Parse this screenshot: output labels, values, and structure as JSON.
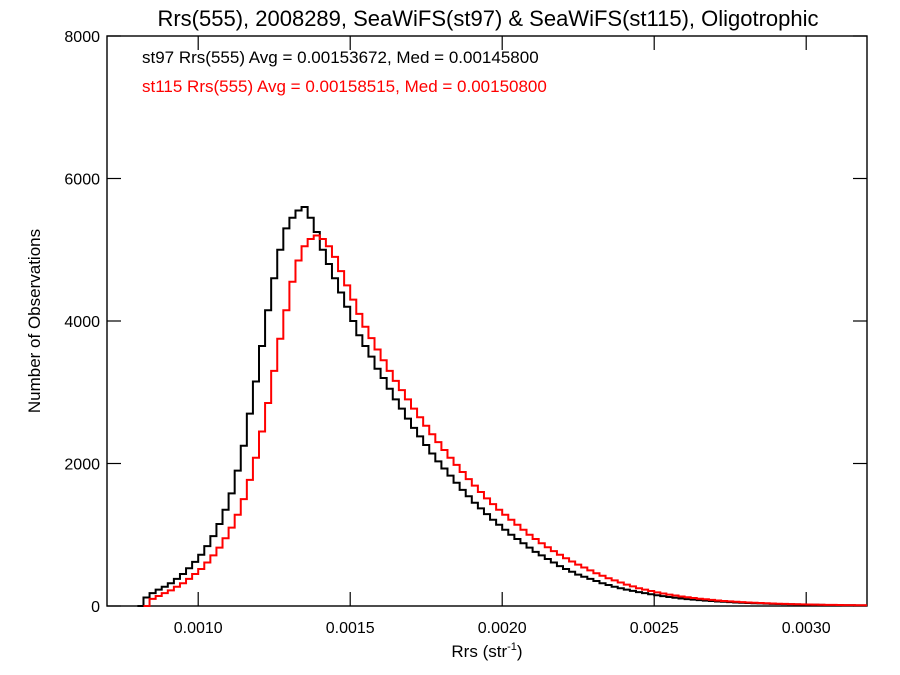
{
  "chart_data": {
    "type": "line",
    "style": "histogram-step",
    "title": "Rrs(555), 2008289, SeaWiFS(st97) & SeaWiFS(st115), Oligotrophic",
    "xlabel_main": "Rrs (str",
    "xlabel_sup": "-1",
    "xlabel_close": ")",
    "ylabel": "Number of Observations",
    "xlim": [
      0.0007,
      0.0032
    ],
    "ylim": [
      0,
      8000
    ],
    "xticks": [
      {
        "value": 0.001,
        "label": "0.0010"
      },
      {
        "value": 0.0015,
        "label": "0.0015"
      },
      {
        "value": 0.002,
        "label": "0.0020"
      },
      {
        "value": 0.0025,
        "label": "0.0025"
      },
      {
        "value": 0.003,
        "label": "0.0030"
      }
    ],
    "yticks": [
      {
        "value": 0,
        "label": "0"
      },
      {
        "value": 2000,
        "label": "2000"
      },
      {
        "value": 4000,
        "label": "4000"
      },
      {
        "value": 6000,
        "label": "6000"
      },
      {
        "value": 8000,
        "label": "8000"
      }
    ],
    "grid": false,
    "legend_position": "top-left",
    "series": [
      {
        "name": "st97",
        "color": "#000000",
        "annotation": "st97 Rrs(555) Avg = 0.00153672, Med = 0.00145800",
        "points": [
          [
            0.0008,
            0
          ],
          [
            0.00082,
            120
          ],
          [
            0.00084,
            180
          ],
          [
            0.00086,
            230
          ],
          [
            0.00088,
            270
          ],
          [
            0.0009,
            320
          ],
          [
            0.00092,
            380
          ],
          [
            0.00094,
            450
          ],
          [
            0.00096,
            530
          ],
          [
            0.00098,
            620
          ],
          [
            0.001,
            720
          ],
          [
            0.00102,
            840
          ],
          [
            0.00104,
            980
          ],
          [
            0.00106,
            1150
          ],
          [
            0.00108,
            1350
          ],
          [
            0.0011,
            1580
          ],
          [
            0.00112,
            1900
          ],
          [
            0.00114,
            2250
          ],
          [
            0.00116,
            2700
          ],
          [
            0.00118,
            3150
          ],
          [
            0.0012,
            3650
          ],
          [
            0.00122,
            4150
          ],
          [
            0.00124,
            4600
          ],
          [
            0.00126,
            5000
          ],
          [
            0.00128,
            5300
          ],
          [
            0.0013,
            5450
          ],
          [
            0.00132,
            5550
          ],
          [
            0.00134,
            5600
          ],
          [
            0.00136,
            5450
          ],
          [
            0.00138,
            5250
          ],
          [
            0.0014,
            5000
          ],
          [
            0.00142,
            4800
          ],
          [
            0.00144,
            4600
          ],
          [
            0.00146,
            4400
          ],
          [
            0.00148,
            4200
          ],
          [
            0.0015,
            4000
          ],
          [
            0.00152,
            3800
          ],
          [
            0.00154,
            3650
          ],
          [
            0.00156,
            3500
          ],
          [
            0.00158,
            3330
          ],
          [
            0.0016,
            3200
          ],
          [
            0.00162,
            3050
          ],
          [
            0.00164,
            2900
          ],
          [
            0.00166,
            2770
          ],
          [
            0.00168,
            2630
          ],
          [
            0.0017,
            2500
          ],
          [
            0.00172,
            2380
          ],
          [
            0.00174,
            2260
          ],
          [
            0.00176,
            2140
          ],
          [
            0.00178,
            2030
          ],
          [
            0.0018,
            1930
          ],
          [
            0.00182,
            1830
          ],
          [
            0.00184,
            1730
          ],
          [
            0.00186,
            1630
          ],
          [
            0.00188,
            1540
          ],
          [
            0.0019,
            1450
          ],
          [
            0.00192,
            1370
          ],
          [
            0.00194,
            1290
          ],
          [
            0.00196,
            1210
          ],
          [
            0.00198,
            1140
          ],
          [
            0.002,
            1070
          ],
          [
            0.00202,
            1000
          ],
          [
            0.00204,
            940
          ],
          [
            0.00206,
            880
          ],
          [
            0.00208,
            820
          ],
          [
            0.0021,
            760
          ],
          [
            0.00212,
            710
          ],
          [
            0.00214,
            660
          ],
          [
            0.00216,
            610
          ],
          [
            0.00218,
            560
          ],
          [
            0.0022,
            520
          ],
          [
            0.00222,
            480
          ],
          [
            0.00224,
            440
          ],
          [
            0.00226,
            410
          ],
          [
            0.00228,
            380
          ],
          [
            0.0023,
            350
          ],
          [
            0.00232,
            320
          ],
          [
            0.00234,
            295
          ],
          [
            0.00236,
            270
          ],
          [
            0.00238,
            250
          ],
          [
            0.0024,
            230
          ],
          [
            0.00242,
            212
          ],
          [
            0.00244,
            195
          ],
          [
            0.00246,
            180
          ],
          [
            0.00248,
            165
          ],
          [
            0.0025,
            150
          ],
          [
            0.00252,
            138
          ],
          [
            0.00254,
            126
          ],
          [
            0.00256,
            116
          ],
          [
            0.00258,
            106
          ],
          [
            0.0026,
            97
          ],
          [
            0.00262,
            90
          ],
          [
            0.00264,
            83
          ],
          [
            0.00266,
            76
          ],
          [
            0.00268,
            70
          ],
          [
            0.0027,
            64
          ],
          [
            0.00272,
            59
          ],
          [
            0.00274,
            54
          ],
          [
            0.00276,
            50
          ],
          [
            0.00278,
            46
          ],
          [
            0.0028,
            42
          ],
          [
            0.00282,
            39
          ],
          [
            0.00284,
            36
          ],
          [
            0.00286,
            33
          ],
          [
            0.00288,
            30
          ],
          [
            0.0029,
            28
          ],
          [
            0.00292,
            26
          ],
          [
            0.00294,
            24
          ],
          [
            0.00296,
            22
          ],
          [
            0.00298,
            20
          ],
          [
            0.003,
            18
          ],
          [
            0.00302,
            17
          ],
          [
            0.00304,
            15
          ],
          [
            0.00306,
            14
          ],
          [
            0.00308,
            13
          ],
          [
            0.0031,
            12
          ],
          [
            0.00312,
            11
          ],
          [
            0.00314,
            10
          ],
          [
            0.00316,
            9
          ],
          [
            0.00318,
            8
          ],
          [
            0.0032,
            8
          ]
        ]
      },
      {
        "name": "st115",
        "color": "#ff0000",
        "annotation": "st115 Rrs(555) Avg = 0.00158515, Med = 0.00150800",
        "points": [
          [
            0.00082,
            0
          ],
          [
            0.00084,
            100
          ],
          [
            0.00086,
            140
          ],
          [
            0.00088,
            180
          ],
          [
            0.0009,
            220
          ],
          [
            0.00092,
            270
          ],
          [
            0.00094,
            320
          ],
          [
            0.00096,
            380
          ],
          [
            0.00098,
            450
          ],
          [
            0.001,
            520
          ],
          [
            0.00102,
            610
          ],
          [
            0.00104,
            710
          ],
          [
            0.00106,
            820
          ],
          [
            0.00108,
            950
          ],
          [
            0.0011,
            1100
          ],
          [
            0.00112,
            1280
          ],
          [
            0.00114,
            1500
          ],
          [
            0.00116,
            1770
          ],
          [
            0.00118,
            2080
          ],
          [
            0.0012,
            2450
          ],
          [
            0.00122,
            2850
          ],
          [
            0.00124,
            3300
          ],
          [
            0.00126,
            3750
          ],
          [
            0.00128,
            4150
          ],
          [
            0.0013,
            4550
          ],
          [
            0.00132,
            4850
          ],
          [
            0.00134,
            5050
          ],
          [
            0.00136,
            5150
          ],
          [
            0.00138,
            5200
          ],
          [
            0.0014,
            5150
          ],
          [
            0.00142,
            5050
          ],
          [
            0.00144,
            4900
          ],
          [
            0.00146,
            4700
          ],
          [
            0.00148,
            4500
          ],
          [
            0.0015,
            4300
          ],
          [
            0.00152,
            4100
          ],
          [
            0.00154,
            3920
          ],
          [
            0.00156,
            3760
          ],
          [
            0.00158,
            3600
          ],
          [
            0.0016,
            3450
          ],
          [
            0.00162,
            3300
          ],
          [
            0.00164,
            3160
          ],
          [
            0.00166,
            3030
          ],
          [
            0.00168,
            2900
          ],
          [
            0.0017,
            2770
          ],
          [
            0.00172,
            2650
          ],
          [
            0.00174,
            2530
          ],
          [
            0.00176,
            2410
          ],
          [
            0.00178,
            2300
          ],
          [
            0.0018,
            2190
          ],
          [
            0.00182,
            2080
          ],
          [
            0.00184,
            1980
          ],
          [
            0.00186,
            1880
          ],
          [
            0.00188,
            1780
          ],
          [
            0.0019,
            1690
          ],
          [
            0.00192,
            1600
          ],
          [
            0.00194,
            1510
          ],
          [
            0.00196,
            1430
          ],
          [
            0.00198,
            1350
          ],
          [
            0.002,
            1280
          ],
          [
            0.00202,
            1210
          ],
          [
            0.00204,
            1140
          ],
          [
            0.00206,
            1070
          ],
          [
            0.00208,
            1000
          ],
          [
            0.0021,
            940
          ],
          [
            0.00212,
            880
          ],
          [
            0.00214,
            825
          ],
          [
            0.00216,
            770
          ],
          [
            0.00218,
            720
          ],
          [
            0.0022,
            670
          ],
          [
            0.00222,
            625
          ],
          [
            0.00224,
            580
          ],
          [
            0.00226,
            540
          ],
          [
            0.00228,
            500
          ],
          [
            0.0023,
            460
          ],
          [
            0.00232,
            425
          ],
          [
            0.00234,
            390
          ],
          [
            0.00236,
            360
          ],
          [
            0.00238,
            330
          ],
          [
            0.0024,
            300
          ],
          [
            0.00242,
            275
          ],
          [
            0.00244,
            250
          ],
          [
            0.00246,
            230
          ],
          [
            0.00248,
            210
          ],
          [
            0.0025,
            192
          ],
          [
            0.00252,
            176
          ],
          [
            0.00254,
            160
          ],
          [
            0.00256,
            147
          ],
          [
            0.00258,
            134
          ],
          [
            0.0026,
            122
          ],
          [
            0.00262,
            112
          ],
          [
            0.00264,
            102
          ],
          [
            0.00266,
            94
          ],
          [
            0.00268,
            86
          ],
          [
            0.0027,
            78
          ],
          [
            0.00272,
            71
          ],
          [
            0.00274,
            65
          ],
          [
            0.00276,
            60
          ],
          [
            0.00278,
            55
          ],
          [
            0.0028,
            50
          ],
          [
            0.00282,
            46
          ],
          [
            0.00284,
            42
          ],
          [
            0.00286,
            38
          ],
          [
            0.00288,
            35
          ],
          [
            0.0029,
            32
          ],
          [
            0.00292,
            29
          ],
          [
            0.00294,
            27
          ],
          [
            0.00296,
            25
          ],
          [
            0.00298,
            23
          ],
          [
            0.003,
            21
          ],
          [
            0.00302,
            19
          ],
          [
            0.00304,
            18
          ],
          [
            0.00306,
            16
          ],
          [
            0.00308,
            15
          ],
          [
            0.0031,
            14
          ],
          [
            0.00312,
            13
          ],
          [
            0.00314,
            12
          ],
          [
            0.00316,
            11
          ],
          [
            0.00318,
            10
          ],
          [
            0.0032,
            10
          ]
        ]
      }
    ]
  }
}
